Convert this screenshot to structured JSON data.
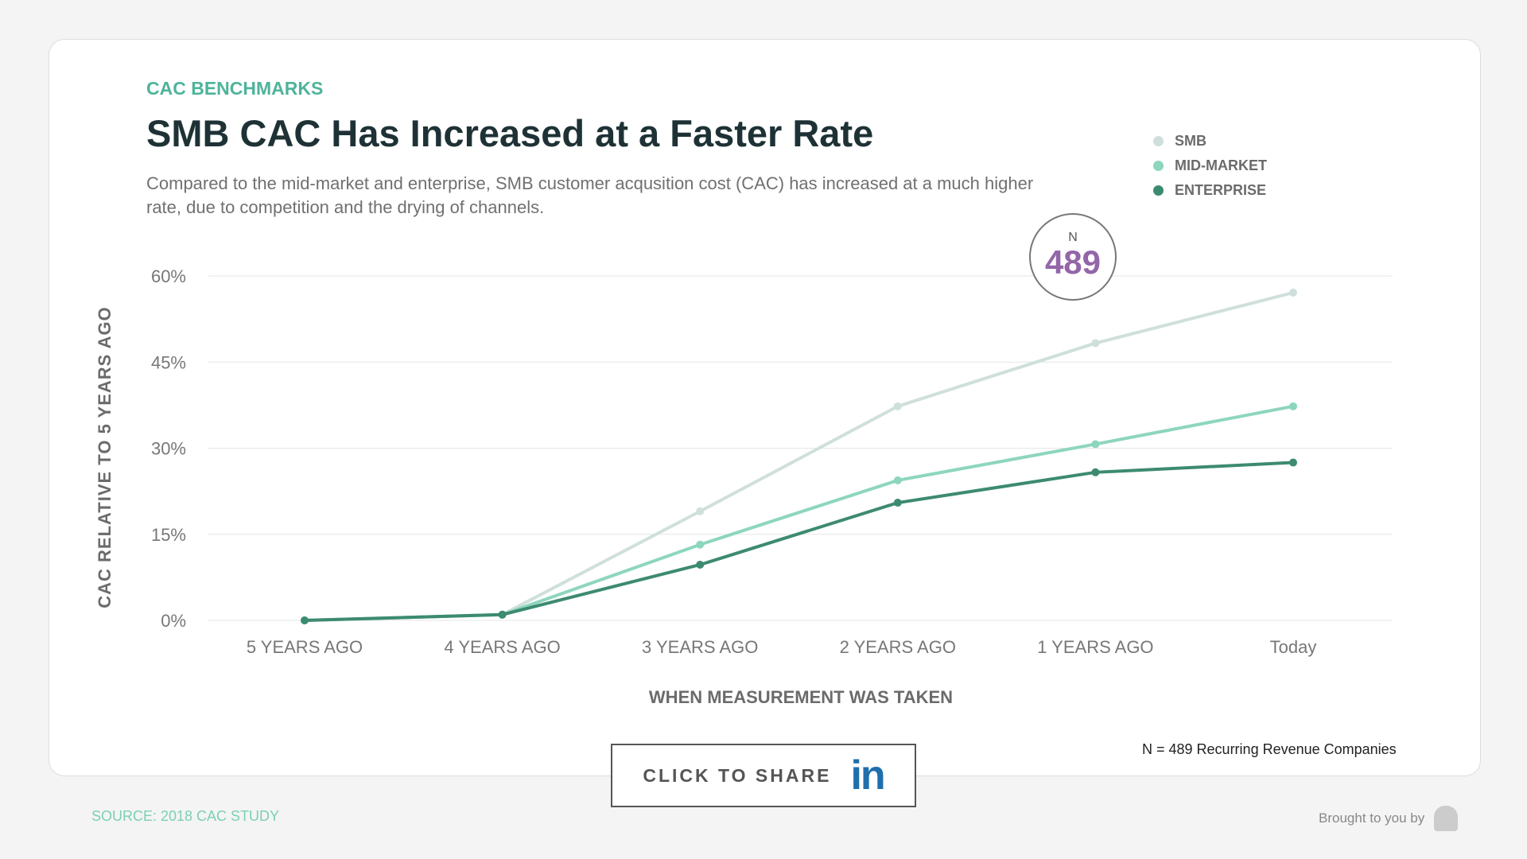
{
  "header": {
    "eyebrow": "CAC BENCHMARKS",
    "title": "SMB CAC Has Increased at a Faster Rate",
    "subtitle": "Compared to the mid-market and enterprise, SMB customer acqusition cost (CAC) has increased at a much higher rate, due to competition and the drying of channels."
  },
  "badge": {
    "label": "N",
    "value": "489"
  },
  "footer": {
    "note": "N = 489 Recurring Revenue Companies",
    "share": "CLICK TO SHARE",
    "share_icon": "in",
    "source": "SOURCE: 2018 CAC STUDY",
    "brought": "Brought to you by"
  },
  "chart_data": {
    "type": "line",
    "xlabel": "WHEN MEASUREMENT WAS TAKEN",
    "ylabel": "CAC RELATIVE TO 5 YEARS AGO",
    "categories": [
      "5 YEARS AGO",
      "4 YEARS AGO",
      "3 YEARS AGO",
      "2 YEARS AGO",
      "1 YEARS AGO",
      "Today"
    ],
    "yticks": [
      "0%",
      "15%",
      "30%",
      "45%",
      "60%"
    ],
    "ylim": [
      0,
      60
    ],
    "grid": true,
    "legend": "top-right",
    "series": [
      {
        "name": "SMB",
        "color": "#cfe0dc",
        "values": [
          0,
          1,
          19,
          37.3,
          48.3,
          57.1
        ]
      },
      {
        "name": "MID-MARKET",
        "color": "#8dd6bd",
        "values": [
          0,
          1,
          13.2,
          24.4,
          30.7,
          37.3
        ]
      },
      {
        "name": "ENTERPRISE",
        "color": "#3d8a72",
        "values": [
          0,
          1,
          9.7,
          20.5,
          25.8,
          27.5
        ]
      }
    ]
  }
}
